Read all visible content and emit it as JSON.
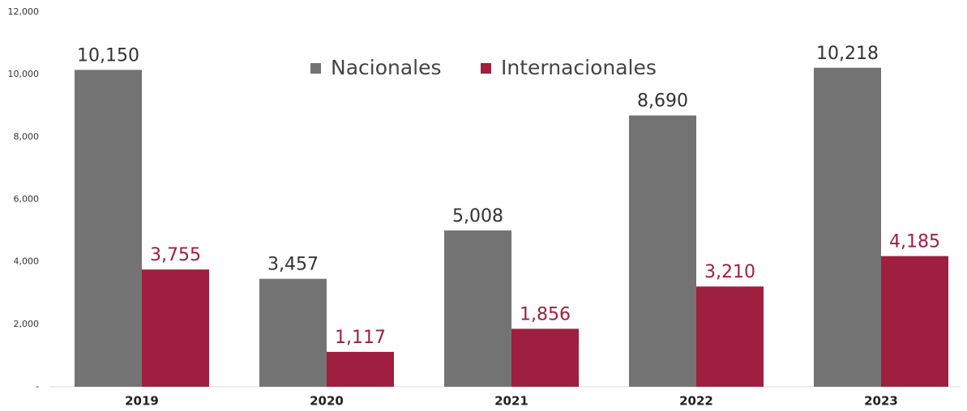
{
  "chart_data": {
    "type": "bar",
    "categories": [
      "2019",
      "2020",
      "2021",
      "2022",
      "2023"
    ],
    "series": [
      {
        "name": "Nacionales",
        "color": "#737373",
        "values": [
          10150,
          3457,
          5008,
          8690,
          10218
        ],
        "value_labels": [
          "10,150",
          "3,457",
          "5,008",
          "8,690",
          "10,218"
        ]
      },
      {
        "name": "Internacionales",
        "color": "#9e1f3f",
        "values": [
          3755,
          1117,
          1856,
          3210,
          4185
        ],
        "value_labels": [
          "3,755",
          "1,117",
          "1,856",
          "3,210",
          "4,185"
        ]
      }
    ],
    "ylim": [
      0,
      12000
    ],
    "yticks": [
      {
        "value": 0,
        "label": "-"
      },
      {
        "value": 2000,
        "label": "2,000"
      },
      {
        "value": 4000,
        "label": "4,000"
      },
      {
        "value": 6000,
        "label": "6,000"
      },
      {
        "value": 8000,
        "label": "8,000"
      },
      {
        "value": 10000,
        "label": "10,000"
      },
      {
        "value": 12000,
        "label": "12,000"
      }
    ],
    "grid": false,
    "legend": "top"
  }
}
